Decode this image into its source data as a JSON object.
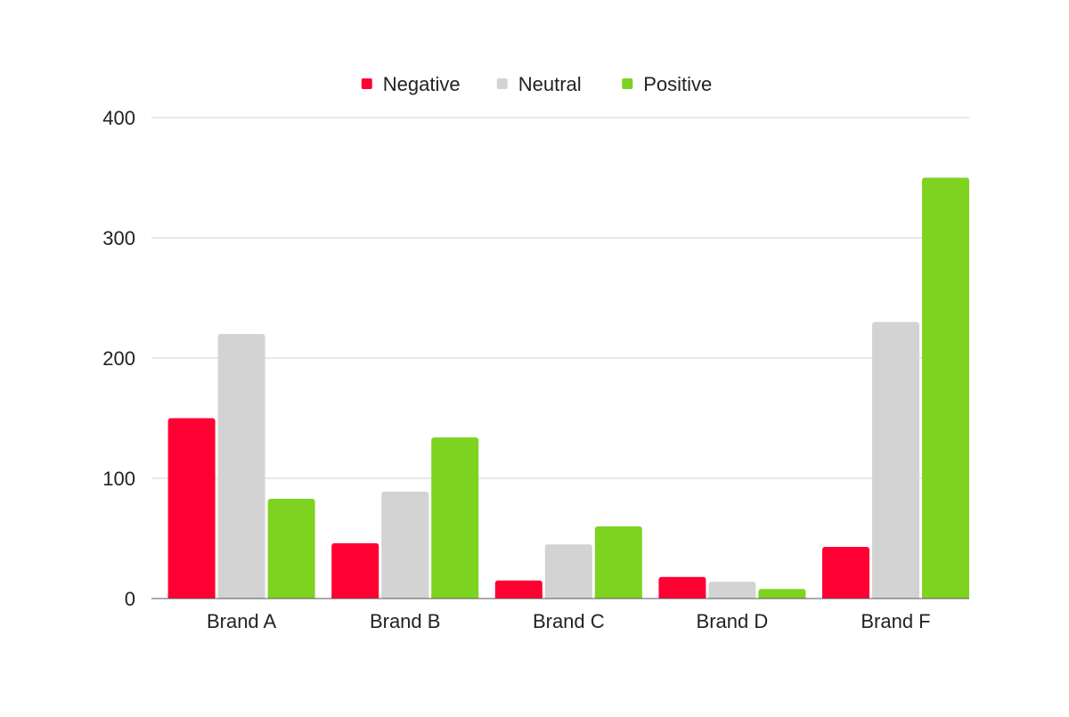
{
  "chart_data": {
    "type": "bar",
    "title": "",
    "xlabel": "",
    "ylabel": "",
    "categories": [
      "Brand A",
      "Brand B",
      "Brand C",
      "Brand D",
      "Brand F"
    ],
    "series": [
      {
        "name": "Negative",
        "color": "#ff0033",
        "values": [
          150,
          46,
          15,
          18,
          43
        ]
      },
      {
        "name": "Neutral",
        "color": "#d3d3d3",
        "values": [
          220,
          89,
          45,
          14,
          230
        ]
      },
      {
        "name": "Positive",
        "color": "#7ed321",
        "values": [
          83,
          134,
          60,
          8,
          350
        ]
      }
    ],
    "ylim": [
      0,
      400
    ],
    "yticks": [
      0,
      100,
      200,
      300,
      400
    ],
    "ytick_labels": [
      "0",
      "100",
      "200",
      "300",
      "400"
    ],
    "grid": true,
    "legend_position": "top-center"
  }
}
